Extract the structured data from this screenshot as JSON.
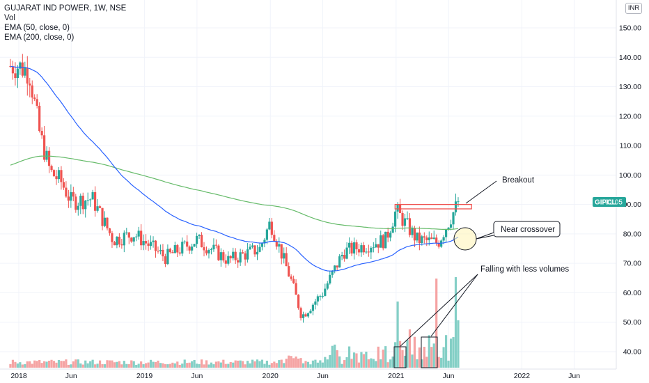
{
  "header": {
    "title": "GUJARAT IND POWER, 1W, NSE",
    "indicators": [
      "Vol",
      "EMA (50, close, 0)",
      "EMA (200, close, 0)"
    ],
    "currency": "INR"
  },
  "price_label": {
    "symbol": "GIPCL",
    "value": "91.05",
    "color": "#26a69a"
  },
  "colors": {
    "up": "#26a69a",
    "down": "#ef5350",
    "ema50": "#2962ff",
    "ema200": "#66bb6a",
    "vol_up": "#84cfc6",
    "vol_down": "#f5a3a3",
    "resistance": "#ef5350",
    "grid": "#f0f3fa"
  },
  "annotations": {
    "breakout": "Breakout",
    "crossover": "Near crossover",
    "volumes": "Falling with less volumes"
  },
  "chart_data": {
    "type": "candlestick",
    "x_axis": {
      "ticks": [
        "2018",
        "Jun",
        "2019",
        "Jun",
        "2020",
        "Jun",
        "2021",
        "Jun",
        "2022",
        "Jun"
      ]
    },
    "y_axis": {
      "ticks": [
        40,
        50,
        60,
        70,
        80,
        90,
        100,
        110,
        120,
        130,
        140,
        150
      ],
      "unit": "INR",
      "range": [
        36,
        158
      ]
    },
    "ohlc_anchors": [
      {
        "t": "2018-01",
        "close": 137
      },
      {
        "t": "2018-02",
        "close": 135
      },
      {
        "t": "2018-03",
        "close": 114
      },
      {
        "t": "2018-04",
        "close": 101
      },
      {
        "t": "2018-05",
        "close": 98
      },
      {
        "t": "2018-06",
        "close": 91
      },
      {
        "t": "2018-08",
        "close": 92
      },
      {
        "t": "2018-10",
        "close": 78
      },
      {
        "t": "2018-12",
        "close": 80
      },
      {
        "t": "2019-03",
        "close": 72
      },
      {
        "t": "2019-06",
        "close": 78
      },
      {
        "t": "2019-09",
        "close": 71
      },
      {
        "t": "2019-12",
        "close": 75
      },
      {
        "t": "2020-01",
        "close": 84
      },
      {
        "t": "2020-03",
        "close": 64
      },
      {
        "t": "2020-04",
        "close": 52
      },
      {
        "t": "2020-06",
        "close": 60
      },
      {
        "t": "2020-08",
        "close": 74
      },
      {
        "t": "2020-10",
        "close": 76
      },
      {
        "t": "2020-12",
        "close": 78
      },
      {
        "t": "2021-01",
        "close": 88
      },
      {
        "t": "2021-03",
        "close": 78
      },
      {
        "t": "2021-05",
        "close": 77
      },
      {
        "t": "2021-07",
        "close": 91.05
      }
    ],
    "resistance_level": [
      88.5,
      90
    ]
  }
}
